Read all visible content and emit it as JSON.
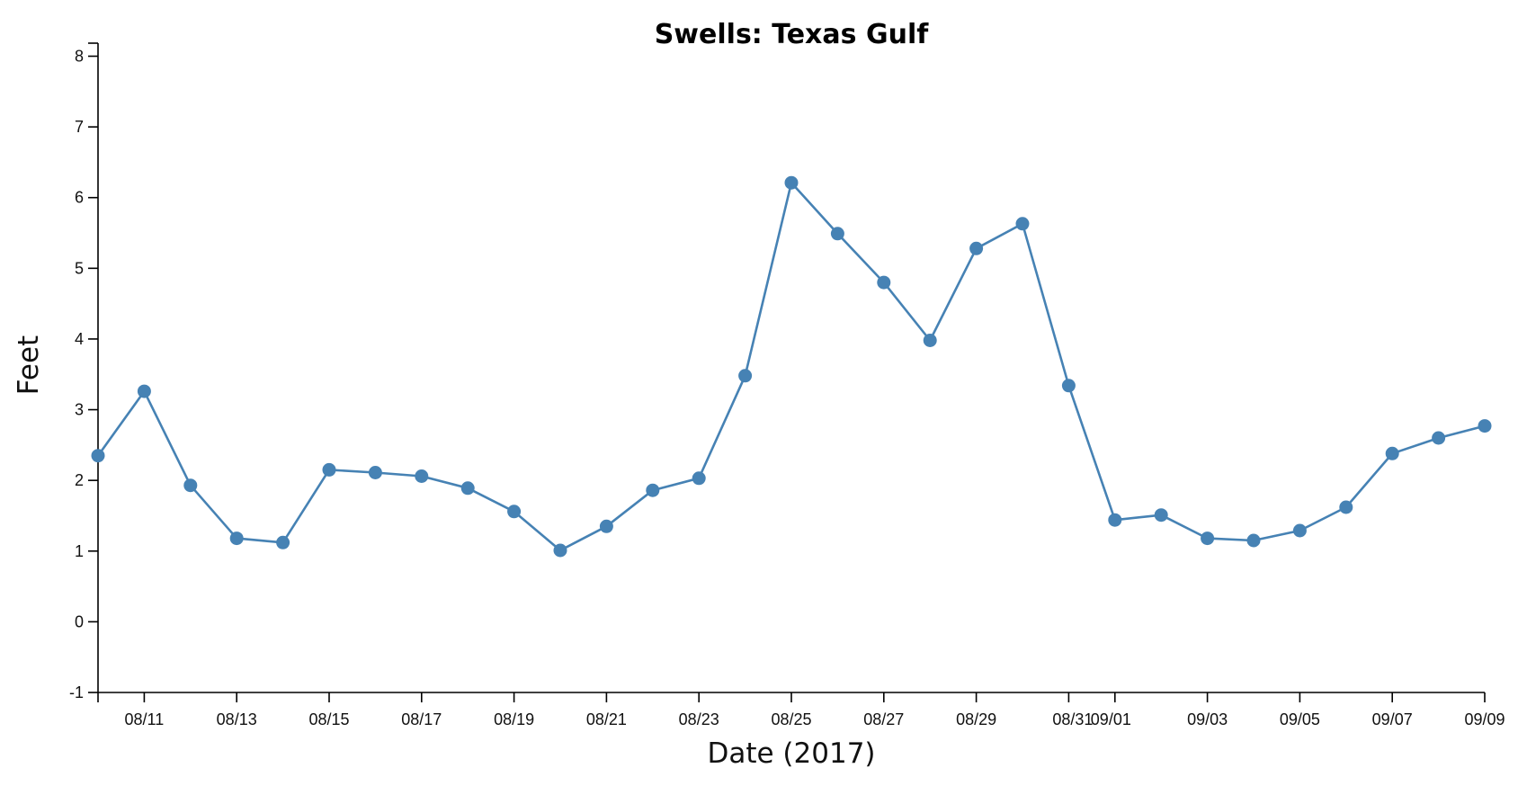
{
  "chart_data": {
    "type": "line",
    "title": "Swells: Texas Gulf",
    "xlabel": "Date (2017)",
    "ylabel": "Feet",
    "xlim": [
      "2017-08-10",
      "2017-09-09"
    ],
    "ylim": [
      -1,
      8
    ],
    "y_ticks": [
      "-1",
      "0",
      "1",
      "2",
      "3",
      "4",
      "5",
      "6",
      "7",
      "8"
    ],
    "x_tick_labels": [
      "08/11",
      "08/13",
      "08/15",
      "08/17",
      "08/19",
      "08/21",
      "08/23",
      "08/25",
      "08/27",
      "08/29",
      "08/31",
      "09/01",
      "09/03",
      "09/05",
      "09/07",
      "09/09"
    ],
    "x_tick_dates": [
      "2017-08-11",
      "2017-08-13",
      "2017-08-15",
      "2017-08-17",
      "2017-08-19",
      "2017-08-21",
      "2017-08-23",
      "2017-08-25",
      "2017-08-27",
      "2017-08-29",
      "2017-08-31",
      "2017-09-01",
      "2017-09-03",
      "2017-09-05",
      "2017-09-07",
      "2017-09-09"
    ],
    "grid": false,
    "series": [
      {
        "color": "#4682b4",
        "points": [
          {
            "x": "2017-08-10",
            "y": 2.35
          },
          {
            "x": "2017-08-11",
            "y": 3.26
          },
          {
            "x": "2017-08-12",
            "y": 1.93
          },
          {
            "x": "2017-08-13",
            "y": 1.18
          },
          {
            "x": "2017-08-14",
            "y": 1.12
          },
          {
            "x": "2017-08-15",
            "y": 2.15
          },
          {
            "x": "2017-08-16",
            "y": 2.11
          },
          {
            "x": "2017-08-17",
            "y": 2.06
          },
          {
            "x": "2017-08-18",
            "y": 1.89
          },
          {
            "x": "2017-08-19",
            "y": 1.56
          },
          {
            "x": "2017-08-20",
            "y": 1.01
          },
          {
            "x": "2017-08-21",
            "y": 1.35
          },
          {
            "x": "2017-08-22",
            "y": 1.86
          },
          {
            "x": "2017-08-23",
            "y": 2.03
          },
          {
            "x": "2017-08-24",
            "y": 3.48
          },
          {
            "x": "2017-08-25",
            "y": 6.21
          },
          {
            "x": "2017-08-26",
            "y": 5.49
          },
          {
            "x": "2017-08-27",
            "y": 4.8
          },
          {
            "x": "2017-08-28",
            "y": 3.98
          },
          {
            "x": "2017-08-29",
            "y": 5.28
          },
          {
            "x": "2017-08-30",
            "y": 5.63
          },
          {
            "x": "2017-08-31",
            "y": 3.34
          },
          {
            "x": "2017-09-01",
            "y": 1.44
          },
          {
            "x": "2017-09-02",
            "y": 1.51
          },
          {
            "x": "2017-09-03",
            "y": 1.18
          },
          {
            "x": "2017-09-04",
            "y": 1.15
          },
          {
            "x": "2017-09-05",
            "y": 1.29
          },
          {
            "x": "2017-09-06",
            "y": 1.62
          },
          {
            "x": "2017-09-07",
            "y": 2.38
          },
          {
            "x": "2017-09-08",
            "y": 2.6
          },
          {
            "x": "2017-09-09",
            "y": 2.77
          }
        ]
      }
    ]
  }
}
